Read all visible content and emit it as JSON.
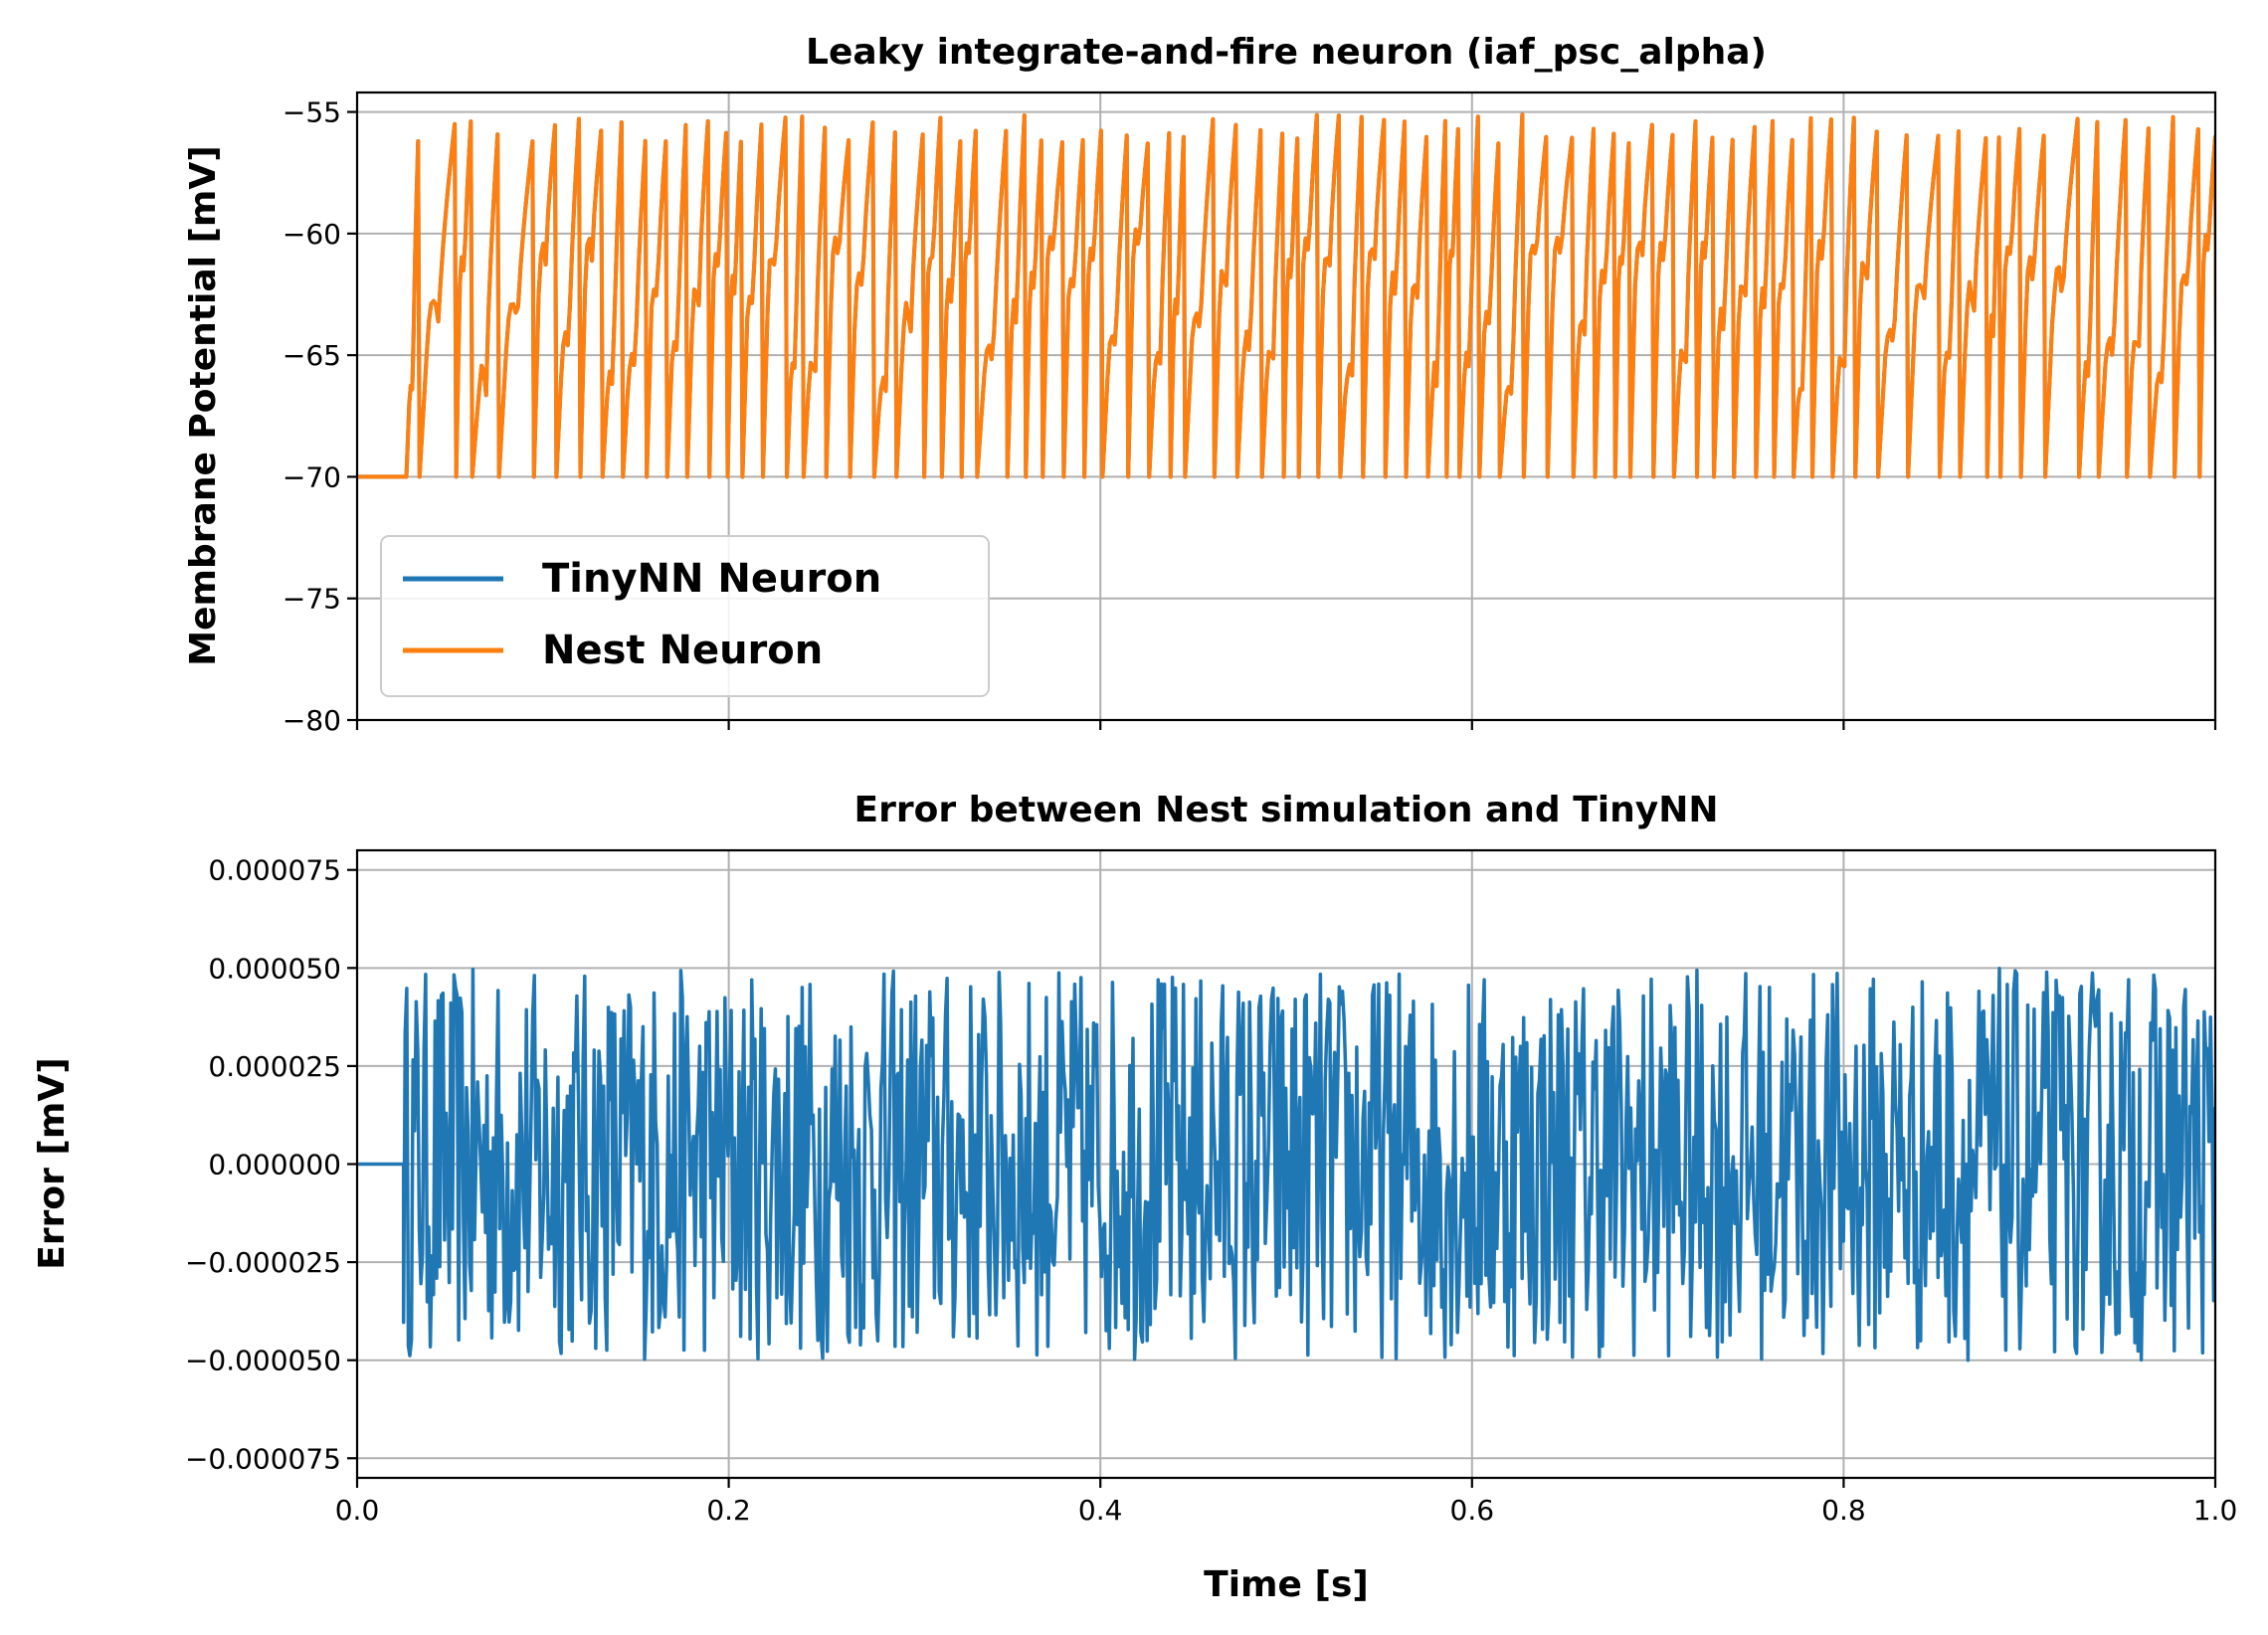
{
  "figure": {
    "colors": {
      "tinynn": "#1f77b4",
      "nest": "#ff7f0e",
      "grid": "#b0b0b0"
    }
  },
  "chart_data": [
    {
      "type": "line",
      "title": "Leaky integrate-and-fire neuron (iaf_psc_alpha)",
      "xlabel": "",
      "ylabel": "Membrane Potential [mV]",
      "xlim": [
        0.0,
        1.0
      ],
      "ylim": [
        -80,
        -54.2
      ],
      "x_ticks": [
        0.0,
        0.2,
        0.4,
        0.6,
        0.8,
        1.0
      ],
      "x_tick_labels_shown": false,
      "y_ticks": [
        -80,
        -75,
        -70,
        -65,
        -60,
        -55
      ],
      "y_tick_labels": [
        "−80",
        "−75",
        "−70",
        "−65",
        "−60",
        "−55"
      ],
      "grid": true,
      "legend": {
        "placement": "lower-left",
        "entries": [
          "TinyNN Neuron",
          "Nest Neuron"
        ]
      },
      "spikes": {
        "rest_mV": -70,
        "spike_times_s": [
          0.0328,
          0.0525,
          0.0612,
          0.0756,
          0.0944,
          0.1065,
          0.1194,
          0.1313,
          0.1423,
          0.1551,
          0.1661,
          0.1769,
          0.1888,
          0.1986,
          0.2066,
          0.2176,
          0.2305,
          0.2395,
          0.2517,
          0.2645,
          0.2775,
          0.2895,
          0.3044,
          0.3139,
          0.3246,
          0.3329,
          0.3492,
          0.3591,
          0.3682,
          0.3795,
          0.3906,
          0.4004,
          0.4142,
          0.4255,
          0.437,
          0.4448,
          0.4606,
          0.4729,
          0.4862,
          0.4979,
          0.506,
          0.5165,
          0.5283,
          0.5406,
          0.5526,
          0.5637,
          0.5755,
          0.5856,
          0.5925,
          0.6032,
          0.6142,
          0.6271,
          0.6399,
          0.6538,
          0.6654,
          0.6763,
          0.6844,
          0.6969,
          0.7079,
          0.7203,
          0.7294,
          0.7402,
          0.7521,
          0.7618,
          0.7723,
          0.7824,
          0.7933,
          0.8055,
          0.8178,
          0.8339,
          0.8509,
          0.8619,
          0.8765,
          0.8836,
          0.8946,
          0.9077,
          0.9259,
          0.9365,
          0.9517,
          0.9641,
          0.9773,
          0.9908,
          1.0
        ]
      },
      "series": [
        {
          "name": "TinyNN Neuron",
          "color": "#1f77b4",
          "x_range": [
            0.0,
            1.0
          ],
          "y_range": [
            -70.0,
            -55.0
          ]
        },
        {
          "name": "Nest Neuron",
          "color": "#ff7f0e",
          "x_range": [
            0.0,
            1.0
          ],
          "y_range": [
            -70.0,
            -55.0
          ]
        }
      ]
    },
    {
      "type": "line",
      "title": "Error between Nest simulation and TinyNN",
      "xlabel": "Time [s]",
      "ylabel": "Error [mV]",
      "xlim": [
        0.0,
        1.0
      ],
      "ylim": [
        -8e-05,
        8e-05
      ],
      "x_ticks": [
        0.0,
        0.2,
        0.4,
        0.6,
        0.8,
        1.0
      ],
      "x_tick_labels": [
        "0.0",
        "0.2",
        "0.4",
        "0.6",
        "0.8",
        "1.0"
      ],
      "y_ticks": [
        -7.5e-05,
        -5e-05,
        -2.5e-05,
        0.0,
        2.5e-05,
        5e-05,
        7.5e-05
      ],
      "y_tick_labels": [
        "−0.000075",
        "−0.000050",
        "−0.000025",
        "0.000000",
        "0.000025",
        "0.000050",
        "0.000075"
      ],
      "grid": true,
      "series": [
        {
          "name": "",
          "color": "#1f77b4",
          "x_range": [
            0.0,
            1.0
          ],
          "y_range": [
            -5e-05,
            5e-05
          ],
          "zero_until_s": 0.025
        }
      ]
    }
  ]
}
